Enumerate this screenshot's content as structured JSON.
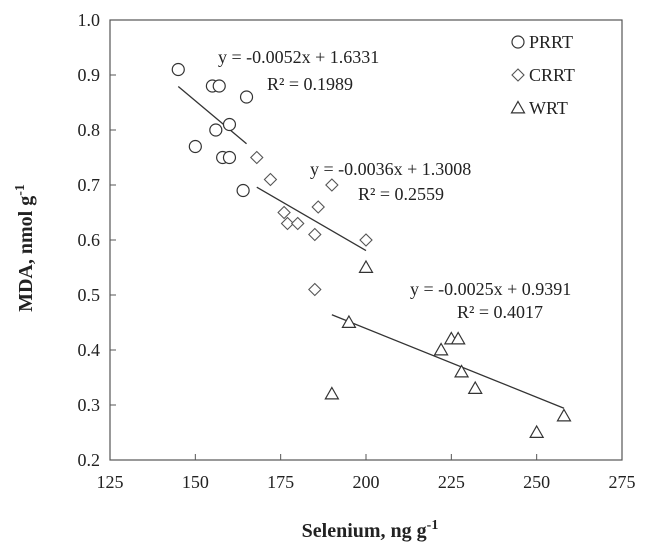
{
  "chart_data": {
    "type": "scatter",
    "title": "",
    "xlabel": "Selenium, ng g",
    "xlabel_sup": "-1",
    "ylabel": "MDA, nmol g",
    "ylabel_sup": "-1",
    "xlim": [
      125,
      275
    ],
    "ylim": [
      0.2,
      1.0
    ],
    "xticks": [
      "125",
      "150",
      "175",
      "200",
      "225",
      "250",
      "275"
    ],
    "yticks": [
      "0.2",
      "0.3",
      "0.4",
      "0.5",
      "0.6",
      "0.7",
      "0.8",
      "0.9",
      "1.0"
    ],
    "grid": false,
    "legend_position": "top-right",
    "series": [
      {
        "name": "PRRT",
        "marker": "circle",
        "x": [
          145,
          150,
          155,
          157,
          156,
          158,
          160,
          160,
          164,
          165
        ],
        "y": [
          0.91,
          0.77,
          0.88,
          0.88,
          0.8,
          0.75,
          0.81,
          0.75,
          0.69,
          0.86
        ],
        "trendline": {
          "slope": -0.0052,
          "intercept": 1.6331,
          "x_range": [
            145,
            165
          ]
        },
        "equation": "y = -0.0052x + 1.6331",
        "r2": "R² = 0.1989"
      },
      {
        "name": "CRRT",
        "marker": "diamond",
        "x": [
          168,
          172,
          176,
          177,
          180,
          185,
          185,
          186,
          190,
          200
        ],
        "y": [
          0.75,
          0.71,
          0.65,
          0.63,
          0.63,
          0.61,
          0.51,
          0.66,
          0.7,
          0.6
        ],
        "trendline": {
          "slope": -0.0036,
          "intercept": 1.3008,
          "x_range": [
            168,
            200
          ]
        },
        "equation": "y = -0.0036x + 1.3008",
        "r2": "R² = 0.2559"
      },
      {
        "name": "WRT",
        "marker": "triangle",
        "x": [
          190,
          195,
          200,
          222,
          225,
          227,
          228,
          232,
          250,
          258
        ],
        "y": [
          0.32,
          0.45,
          0.55,
          0.4,
          0.42,
          0.42,
          0.36,
          0.33,
          0.25,
          0.28
        ],
        "trendline": {
          "slope": -0.0025,
          "intercept": 0.9391,
          "x_range": [
            190,
            258
          ]
        },
        "equation": "y = -0.0025x + 0.9391",
        "r2": "R² = 0.4017"
      }
    ]
  }
}
